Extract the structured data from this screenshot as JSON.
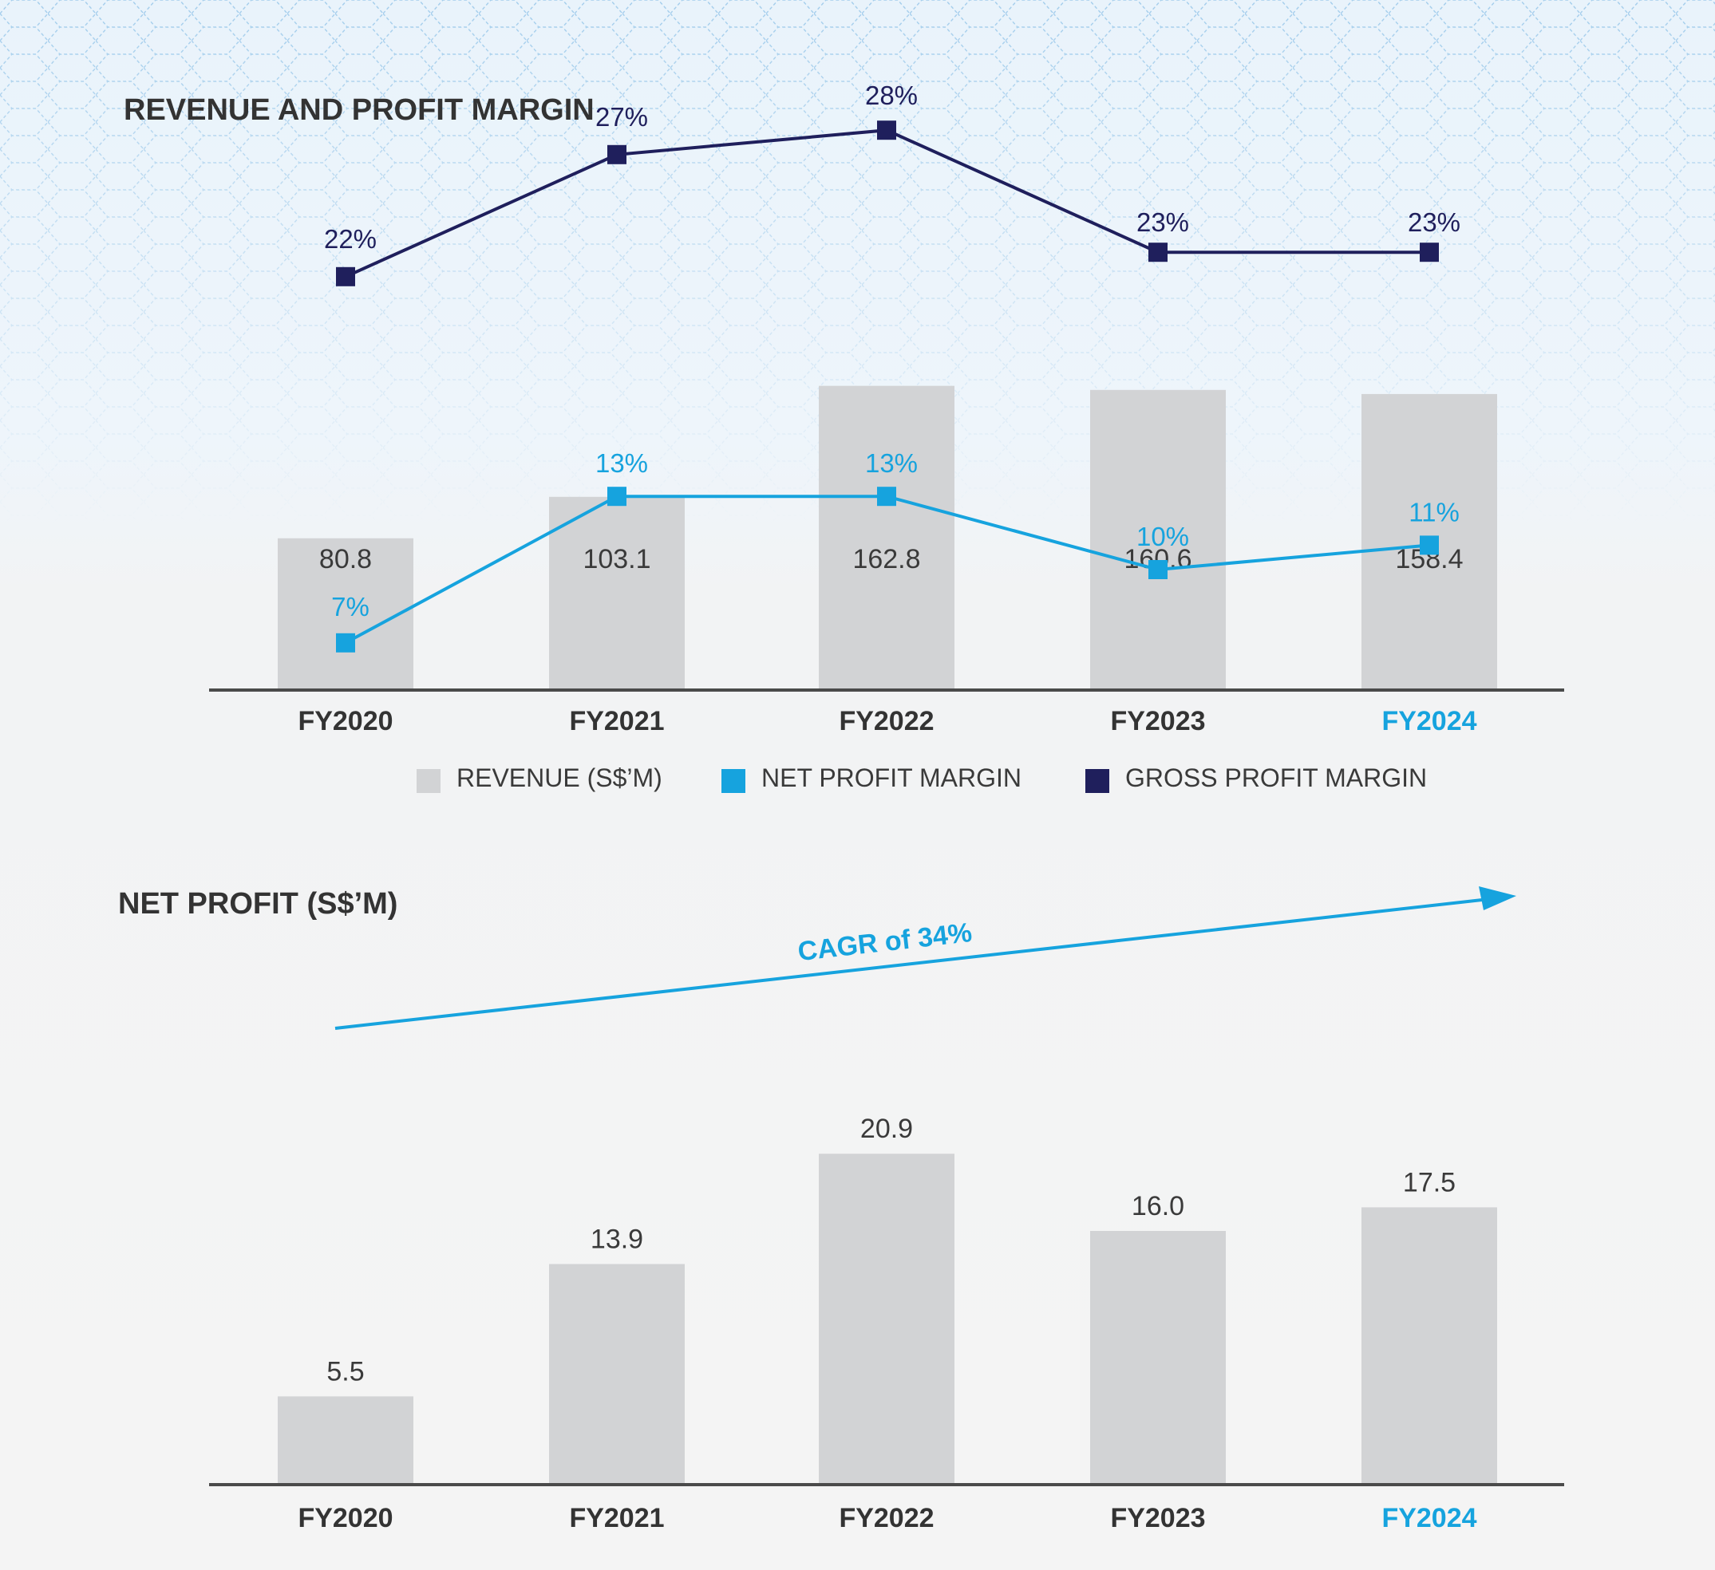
{
  "colors": {
    "bar": "#d2d3d5",
    "axis": "#4a4a4a",
    "net_margin": "#16a3de",
    "gross_margin": "#1f1f5c",
    "text": "#3a3a3a",
    "highlight": "#16a3de"
  },
  "chart_data": [
    {
      "type": "bar",
      "title": "REVENUE AND PROFIT MARGIN",
      "categories": [
        "FY2020",
        "FY2021",
        "FY2022",
        "FY2023",
        "FY2024"
      ],
      "highlight_category": "FY2024",
      "series": [
        {
          "name": "REVENUE (S$’M)",
          "type": "bar",
          "values": [
            80.8,
            103.1,
            162.8,
            160.6,
            158.4
          ],
          "labels": [
            "80.8",
            "103.1",
            "162.8",
            "160.6",
            "158.4"
          ]
        },
        {
          "name": "NET PROFIT MARGIN",
          "type": "line",
          "values": [
            7,
            13,
            13,
            10,
            11
          ],
          "labels": [
            "7%",
            "13%",
            "13%",
            "10%",
            "11%"
          ]
        },
        {
          "name": "GROSS PROFIT MARGIN",
          "type": "line",
          "values": [
            22,
            27,
            28,
            23,
            23
          ],
          "labels": [
            "22%",
            "27%",
            "28%",
            "23%",
            "23%"
          ]
        }
      ],
      "legend": "bottom"
    },
    {
      "type": "bar",
      "title": "NET PROFIT (S$’M)",
      "categories": [
        "FY2020",
        "FY2021",
        "FY2022",
        "FY2023",
        "FY2024"
      ],
      "highlight_category": "FY2024",
      "series": [
        {
          "values": [
            5.5,
            13.9,
            20.9,
            16.0,
            17.5
          ],
          "labels": [
            "5.5",
            "13.9",
            "20.9",
            "16.0",
            "17.5"
          ]
        }
      ],
      "annotation": "CAGR of 34%"
    }
  ]
}
